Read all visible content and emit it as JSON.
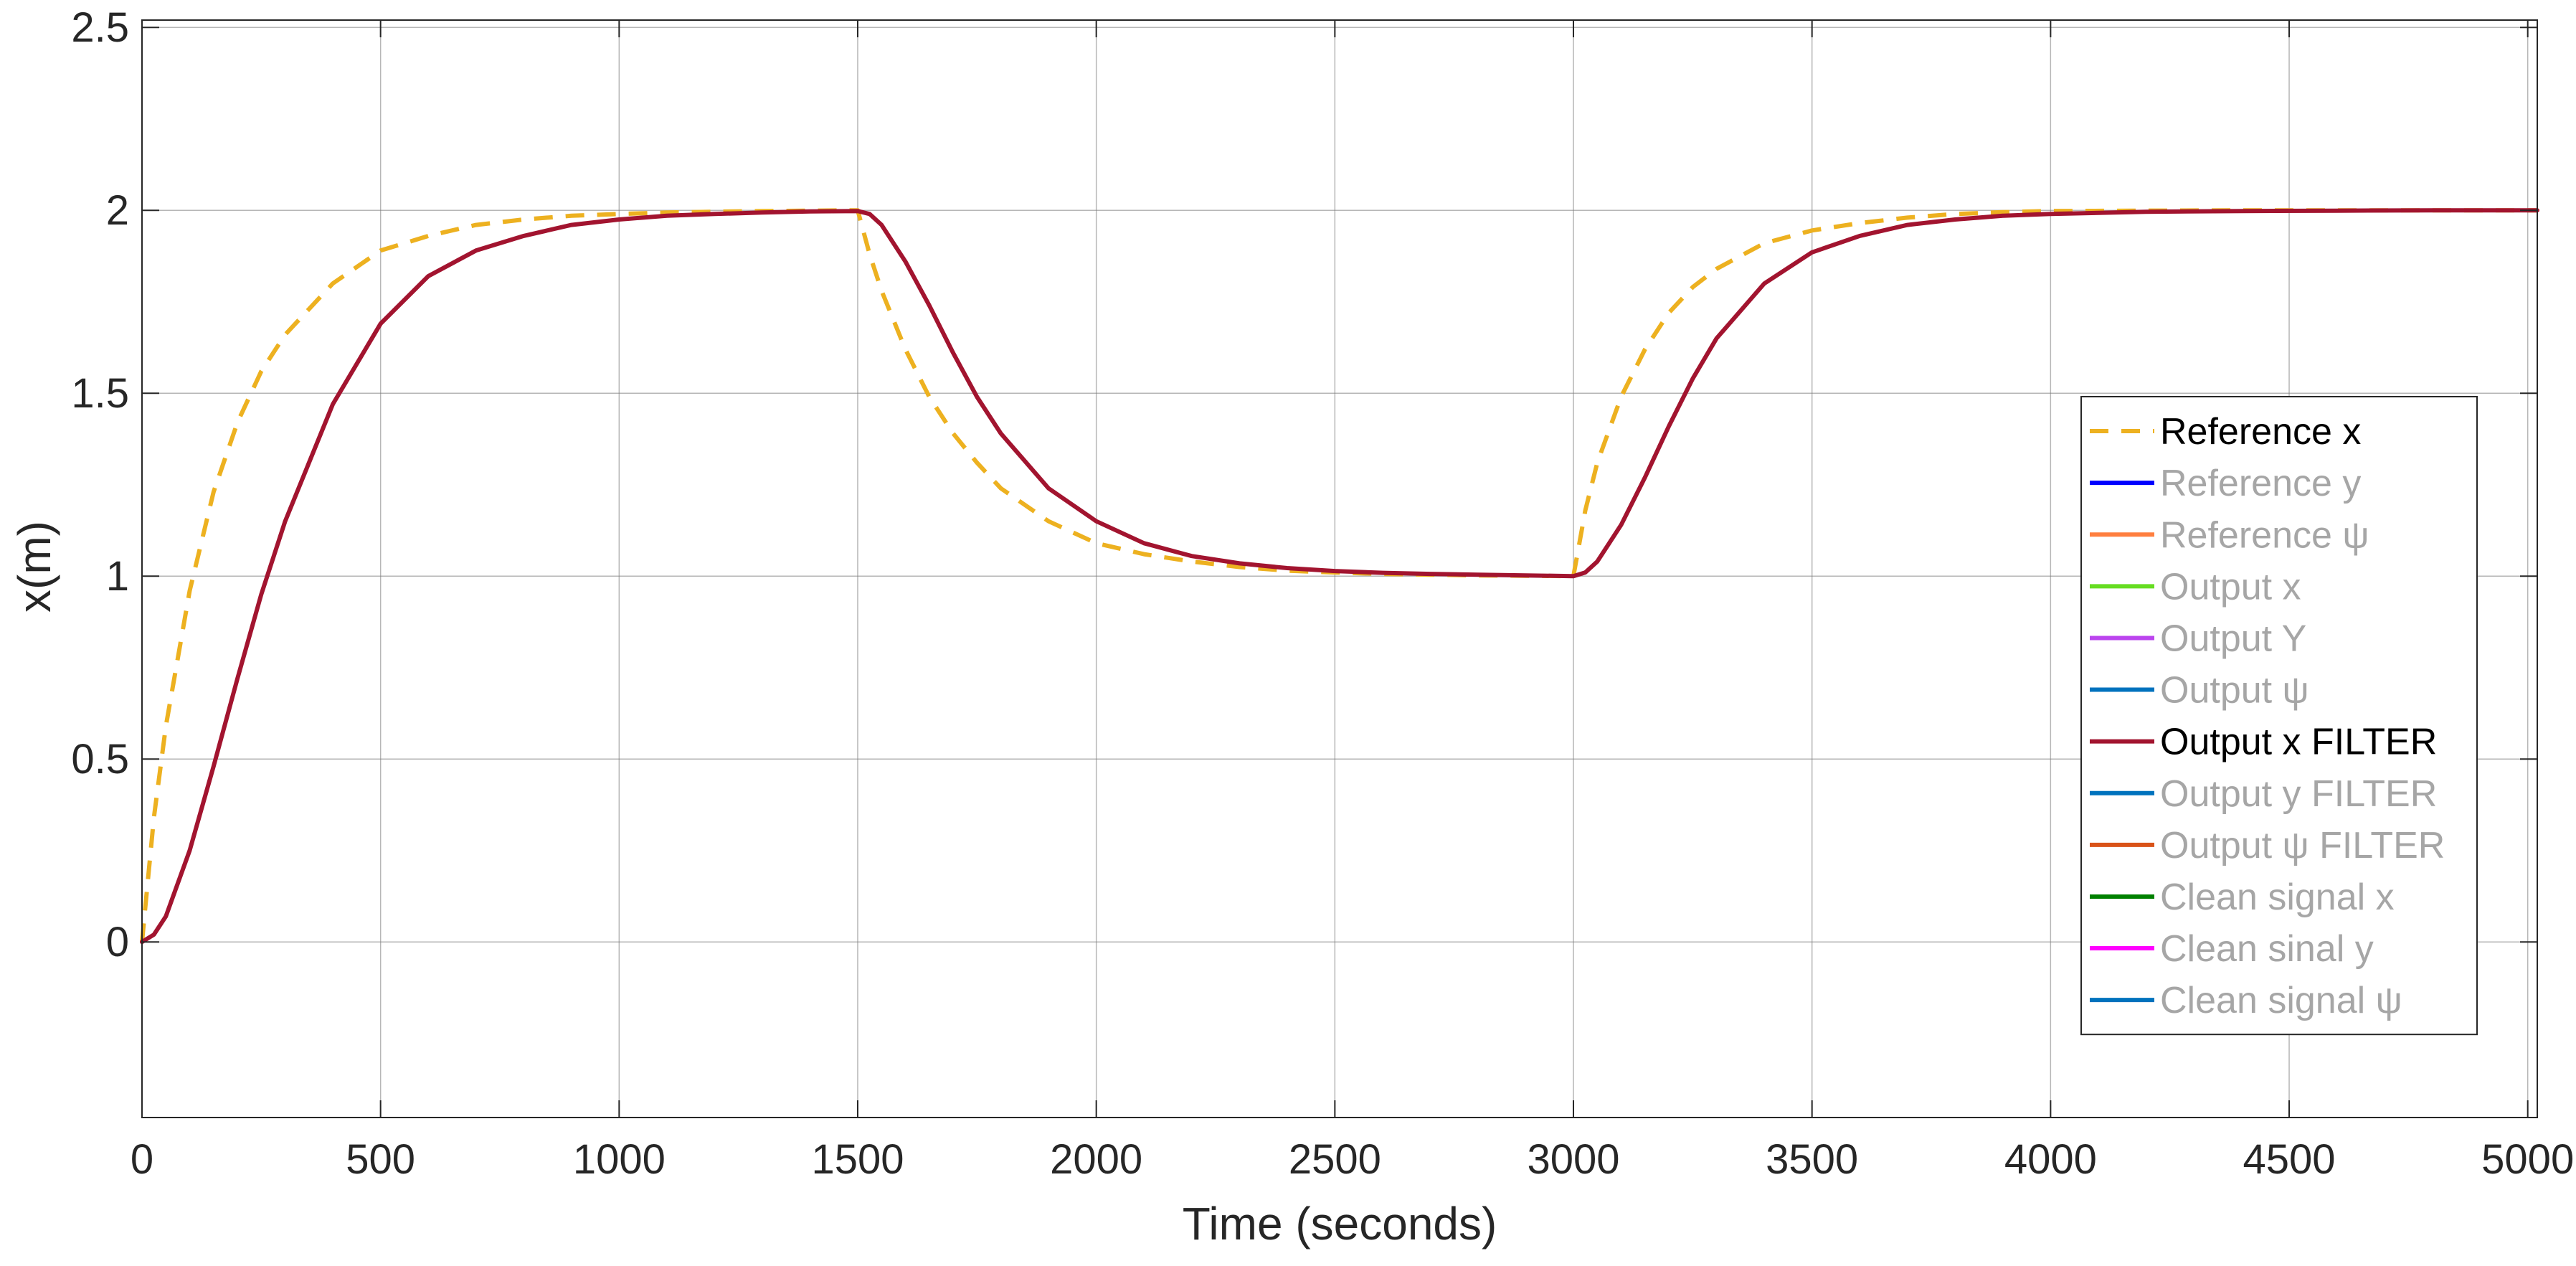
{
  "chart_data": {
    "type": "line",
    "title": "",
    "xlabel": "Time (seconds)",
    "ylabel": "x(m)",
    "xlim": [
      0,
      5020
    ],
    "ylim": [
      -0.48,
      2.52
    ],
    "xticks": [
      0,
      500,
      1000,
      1500,
      2000,
      2500,
      3000,
      3500,
      4000,
      4500,
      5000
    ],
    "xtick_labels": [
      "0",
      "500",
      "1000",
      "1500",
      "2000",
      "2500",
      "3000",
      "3500",
      "4000",
      "4500",
      "5000"
    ],
    "yticks": [
      0,
      0.5,
      1,
      1.5,
      2,
      2.5
    ],
    "ytick_labels": [
      "0",
      "0.5",
      "1",
      "1.5",
      "2",
      "2.5"
    ],
    "grid": true,
    "legend_position": "right",
    "legend": [
      {
        "label": "Reference x",
        "color": "#EDB120",
        "style": "dashed",
        "active": true
      },
      {
        "label": "Reference y",
        "color": "#0000FF",
        "style": "solid",
        "active": false
      },
      {
        "label": "Reference ψ",
        "color": "#FF7F3F",
        "style": "solid",
        "active": false
      },
      {
        "label": "Output x",
        "color": "#66DD22",
        "style": "solid",
        "active": false
      },
      {
        "label": "Output Y",
        "color": "#BB44EE",
        "style": "solid",
        "active": false
      },
      {
        "label": "Output ψ",
        "color": "#0072BD",
        "style": "solid",
        "active": false
      },
      {
        "label": "Output x FILTER",
        "color": "#A2142F",
        "style": "solid",
        "active": true
      },
      {
        "label": "Output y FILTER",
        "color": "#0072BD",
        "style": "solid",
        "active": false
      },
      {
        "label": "Output ψ FILTER",
        "color": "#D95319",
        "style": "solid",
        "active": false
      },
      {
        "label": "Clean signal x",
        "color": "#008000",
        "style": "solid",
        "active": false
      },
      {
        "label": "Clean sinal y",
        "color": "#FF00FF",
        "style": "solid",
        "active": false
      },
      {
        "label": "Clean signal ψ",
        "color": "#0072BD",
        "style": "solid",
        "active": false
      }
    ],
    "series": [
      {
        "name": "Reference x",
        "color": "#EDB120",
        "style": "dashed",
        "x": [
          0,
          25,
          50,
          100,
          150,
          200,
          250,
          300,
          400,
          500,
          600,
          700,
          800,
          900,
          1000,
          1100,
          1200,
          1300,
          1400,
          1500,
          1525,
          1550,
          1600,
          1650,
          1700,
          1750,
          1800,
          1900,
          2000,
          2100,
          2200,
          2300,
          2400,
          2500,
          2600,
          2700,
          2800,
          2900,
          3000,
          3025,
          3050,
          3100,
          3150,
          3200,
          3250,
          3300,
          3400,
          3500,
          3600,
          3700,
          3800,
          3900,
          4000,
          4200,
          4400,
          4600,
          4800,
          5020
        ],
        "y": [
          0,
          0.34,
          0.59,
          0.96,
          1.23,
          1.42,
          1.56,
          1.66,
          1.8,
          1.89,
          1.93,
          1.96,
          1.975,
          1.985,
          1.99,
          1.994,
          1.996,
          1.998,
          1.999,
          2.0,
          1.88,
          1.78,
          1.62,
          1.49,
          1.39,
          1.31,
          1.24,
          1.15,
          1.09,
          1.06,
          1.04,
          1.025,
          1.015,
          1.01,
          1.006,
          1.004,
          1.002,
          1.001,
          1.0,
          1.18,
          1.31,
          1.49,
          1.62,
          1.72,
          1.79,
          1.84,
          1.91,
          1.945,
          1.965,
          1.98,
          1.99,
          1.995,
          1.998,
          1.999,
          2.0,
          2.0,
          2.0,
          2.0
        ]
      },
      {
        "name": "Output x FILTER",
        "color": "#A2142F",
        "style": "solid",
        "x": [
          0,
          25,
          50,
          100,
          150,
          200,
          250,
          300,
          400,
          500,
          600,
          700,
          800,
          900,
          1000,
          1100,
          1200,
          1300,
          1400,
          1500,
          1525,
          1550,
          1600,
          1650,
          1700,
          1750,
          1800,
          1900,
          2000,
          2100,
          2200,
          2300,
          2400,
          2500,
          2600,
          2700,
          2800,
          2900,
          3000,
          3025,
          3050,
          3100,
          3150,
          3200,
          3250,
          3300,
          3400,
          3500,
          3600,
          3700,
          3800,
          3900,
          4000,
          4200,
          4400,
          4600,
          4800,
          5020
        ],
        "y": [
          0,
          0.02,
          0.07,
          0.25,
          0.48,
          0.72,
          0.95,
          1.15,
          1.47,
          1.69,
          1.82,
          1.89,
          1.93,
          1.96,
          1.975,
          1.985,
          1.99,
          1.994,
          1.997,
          1.998,
          1.99,
          1.96,
          1.86,
          1.74,
          1.61,
          1.49,
          1.39,
          1.24,
          1.15,
          1.09,
          1.055,
          1.035,
          1.022,
          1.014,
          1.009,
          1.006,
          1.004,
          1.002,
          1.0,
          1.01,
          1.04,
          1.14,
          1.27,
          1.41,
          1.54,
          1.65,
          1.8,
          1.885,
          1.93,
          1.96,
          1.975,
          1.985,
          1.99,
          1.996,
          1.998,
          1.999,
          2.0,
          2.0
        ]
      }
    ]
  }
}
